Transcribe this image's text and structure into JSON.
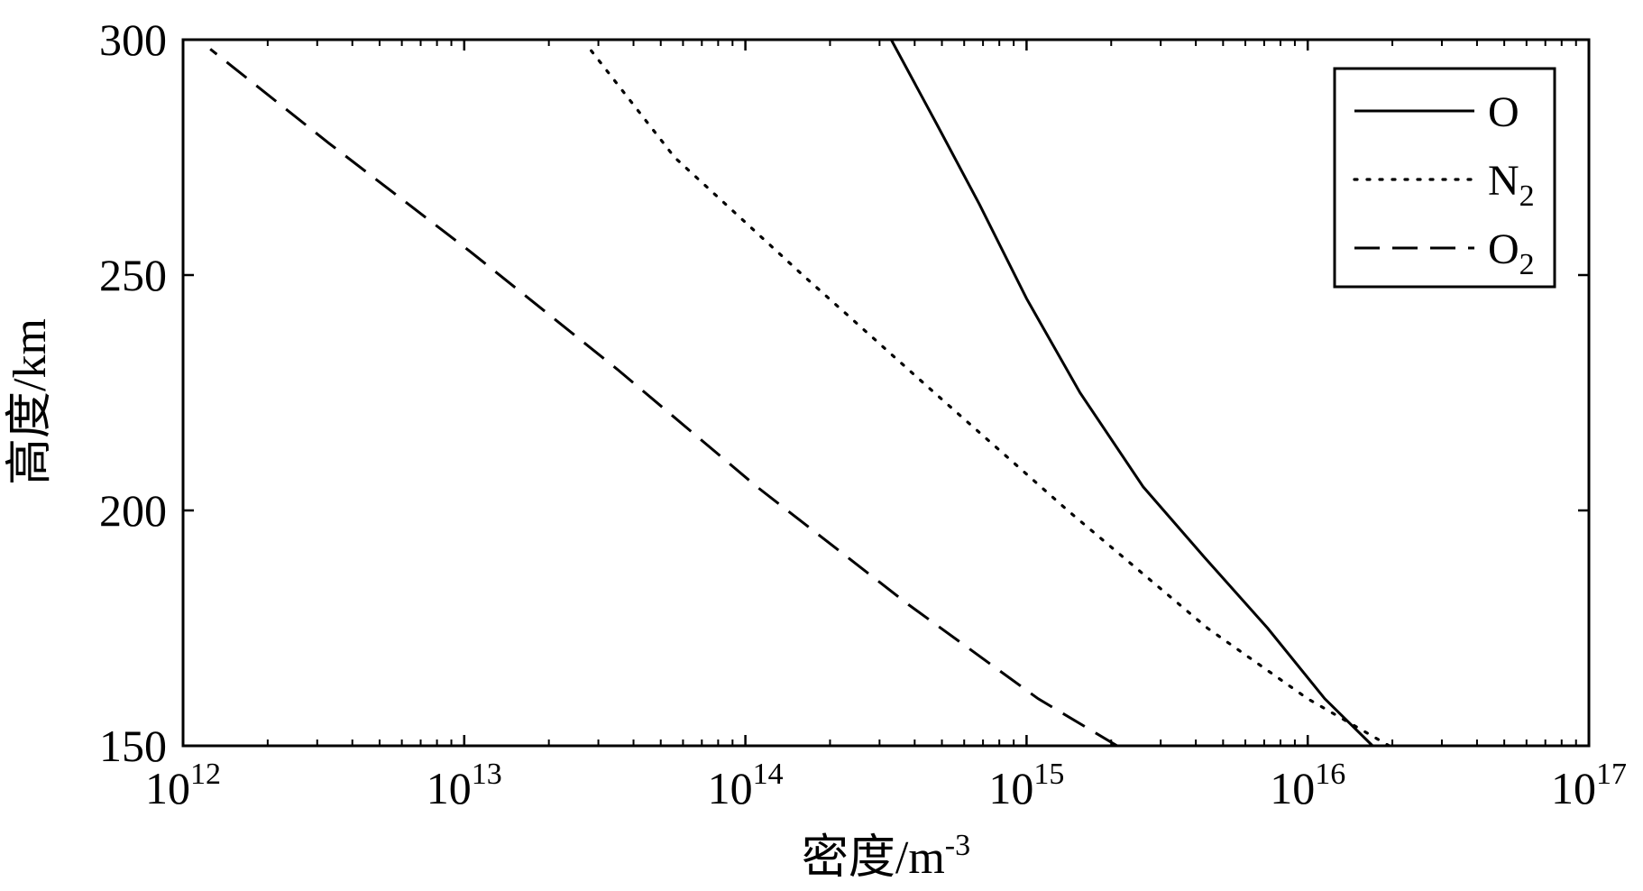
{
  "chart_data": {
    "type": "line",
    "xscale": "log",
    "xlim": [
      1000000000000.0,
      1e+17
    ],
    "ylim": [
      150,
      300
    ],
    "xlabel": "密度/m-3",
    "xlabel_main": "密度/m",
    "xlabel_exp": "-3",
    "ylabel": "高度/km",
    "x_ticks": [
      {
        "base": "10",
        "exp": "12",
        "value": 1000000000000.0
      },
      {
        "base": "10",
        "exp": "13",
        "value": 10000000000000.0
      },
      {
        "base": "10",
        "exp": "14",
        "value": 100000000000000.0
      },
      {
        "base": "10",
        "exp": "15",
        "value": 1000000000000000.0
      },
      {
        "base": "10",
        "exp": "16",
        "value": 1e+16
      },
      {
        "base": "10",
        "exp": "17",
        "value": 1e+17
      }
    ],
    "y_ticks": [
      "150",
      "200",
      "250",
      "300"
    ],
    "grid": false,
    "legend_position": "top-right",
    "series": [
      {
        "name": "O",
        "name_main": "O",
        "name_sub": "",
        "style": "solid",
        "points": [
          {
            "x": 1.7e+16,
            "y": 150
          },
          {
            "x": 1.15e+16,
            "y": 160
          },
          {
            "x": 7200000000000000.0,
            "y": 175
          },
          {
            "x": 4300000000000000.0,
            "y": 190
          },
          {
            "x": 2600000000000000.0,
            "y": 205
          },
          {
            "x": 1550000000000000.0,
            "y": 225
          },
          {
            "x": 1000000000000000.0,
            "y": 245
          },
          {
            "x": 680000000000000.0,
            "y": 265
          },
          {
            "x": 480000000000000.0,
            "y": 282
          },
          {
            "x": 330000000000000.0,
            "y": 300
          }
        ]
      },
      {
        "name": "N2",
        "name_main": "N",
        "name_sub": "2",
        "style": "dotted",
        "points": [
          {
            "x": 1.95e+16,
            "y": 150
          },
          {
            "x": 1e+16,
            "y": 160
          },
          {
            "x": 4400000000000000.0,
            "y": 175
          },
          {
            "x": 1400000000000000.0,
            "y": 200
          },
          {
            "x": 470000000000000.0,
            "y": 225
          },
          {
            "x": 160000000000000.0,
            "y": 250
          },
          {
            "x": 56000000000000.0,
            "y": 275
          },
          {
            "x": 28000000000000.0,
            "y": 298
          }
        ]
      },
      {
        "name": "O2",
        "name_main": "O",
        "name_sub": "2",
        "style": "dashed",
        "points": [
          {
            "x": 2100000000000000.0,
            "y": 150
          },
          {
            "x": 1100000000000000.0,
            "y": 160
          },
          {
            "x": 380000000000000.0,
            "y": 180
          },
          {
            "x": 110000000000000.0,
            "y": 205
          },
          {
            "x": 35000000000000.0,
            "y": 230
          },
          {
            "x": 10500000000000.0,
            "y": 255
          },
          {
            "x": 3300000000000.0,
            "y": 278
          },
          {
            "x": 1250000000000.0,
            "y": 298
          }
        ]
      }
    ]
  }
}
